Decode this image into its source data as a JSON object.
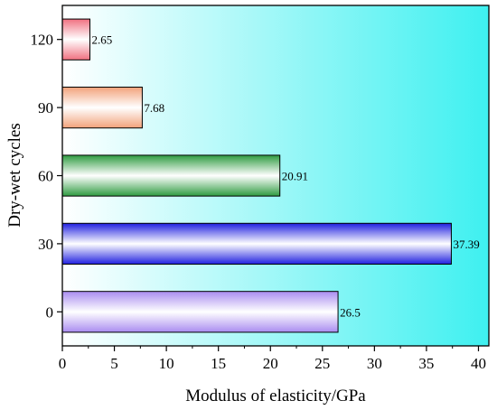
{
  "chart_data": {
    "type": "bar",
    "orientation": "horizontal",
    "title": "",
    "xlabel": "Modulus of elasticity/GPa",
    "ylabel": "Dry-wet cycles",
    "categories": [
      "0",
      "30",
      "60",
      "90",
      "120"
    ],
    "values": [
      26.5,
      37.39,
      20.91,
      7.68,
      2.65
    ],
    "data_labels": [
      "26.5",
      "37.39",
      "20.91",
      "7.68",
      "2.65"
    ],
    "xlim": [
      0,
      41
    ],
    "xticks": [
      "0",
      "5",
      "10",
      "15",
      "20",
      "25",
      "30",
      "35",
      "40"
    ],
    "grid": false,
    "legend": "none",
    "bar_colors": [
      "#a98cf0",
      "#2020e0",
      "#2e9b40",
      "#f2a27a",
      "#f07080"
    ],
    "background_gradient": [
      "#ffffff",
      "#3ef0f0"
    ]
  }
}
